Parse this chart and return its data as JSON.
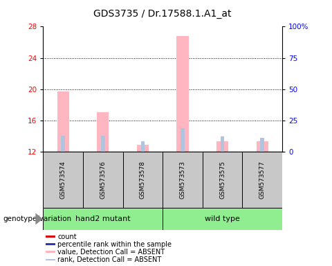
{
  "title": "GDS3735 / Dr.17588.1.A1_at",
  "samples": [
    "GSM573574",
    "GSM573576",
    "GSM573578",
    "GSM573573",
    "GSM573575",
    "GSM573577"
  ],
  "ylim_left": [
    12,
    28
  ],
  "yticks_left": [
    12,
    16,
    20,
    24,
    28
  ],
  "ylim_right": [
    0,
    100
  ],
  "yticks_right": [
    0,
    25,
    50,
    75,
    100
  ],
  "absent_value_color": "#FFB6C1",
  "absent_rank_color": "#B0C4DE",
  "count_color": "#FF4444",
  "rank_color": "#4444CC",
  "absent_value_bars": [
    19.7,
    17.0,
    12.9,
    26.8,
    13.3,
    13.3
  ],
  "absent_rank_bars": [
    14.0,
    14.0,
    13.3,
    15.0,
    13.9,
    13.8
  ],
  "legend_items": [
    {
      "label": "count",
      "color": "#DD0000"
    },
    {
      "label": "percentile rank within the sample",
      "color": "#3333BB"
    },
    {
      "label": "value, Detection Call = ABSENT",
      "color": "#FFB6C1"
    },
    {
      "label": "rank, Detection Call = ABSENT",
      "color": "#B0C4DE"
    }
  ],
  "genotype_label": "genotype/variation",
  "group1_label": "hand2 mutant",
  "group2_label": "wild type",
  "sample_box_color": "#C8C8C8",
  "group_box_color": "#90EE90",
  "title_fontsize": 10,
  "tick_fontsize": 7.5,
  "sample_fontsize": 6.5,
  "group_fontsize": 8,
  "legend_fontsize": 7,
  "genotype_fontsize": 7.5
}
